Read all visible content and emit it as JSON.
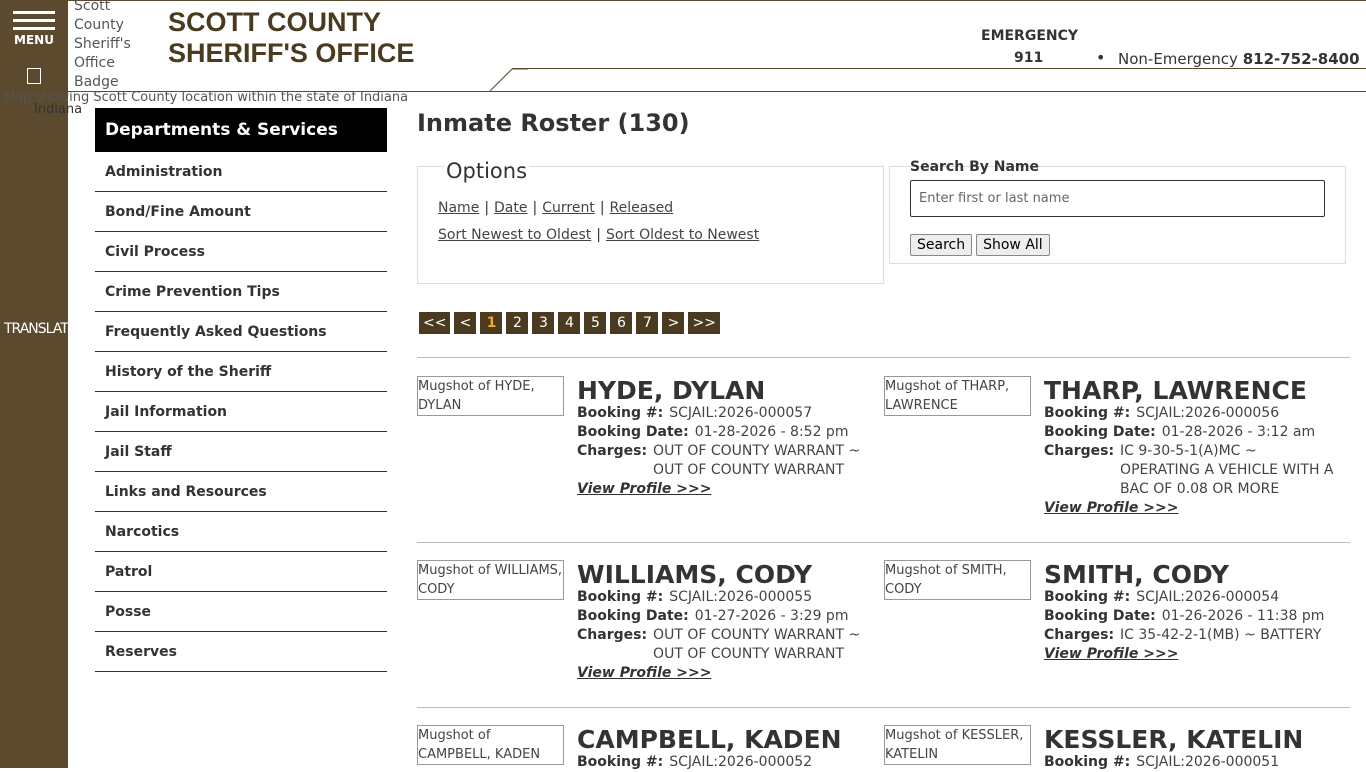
{
  "header": {
    "menu": "MENU",
    "badge_alt": "Scott County Sheriff's Office Badge",
    "title_line1": "SCOTT COUNTY",
    "title_line2": "SHERIFF'S OFFICE",
    "emergency_label": "EMERGENCY",
    "emergency_number": "911",
    "nonemergency_label": "Non-Emergency",
    "nonemergency_number": "812-752-8400"
  },
  "map": {
    "alt": "Map showing Scott County location within the state of Indiana",
    "state_alt": "Indiana"
  },
  "sidebar": {
    "translate": "TRANSLATE"
  },
  "nav": {
    "heading": "Departments & Services",
    "items": [
      "Administration",
      "Bond/Fine Amount",
      "Civil Process",
      "Crime Prevention Tips",
      "Frequently Asked Questions",
      "History of the Sheriff",
      "Jail Information",
      "Jail Staff",
      "Links and Resources",
      "Narcotics",
      "Patrol",
      "Posse",
      "Reserves"
    ]
  },
  "main": {
    "title": "Inmate Roster (130)",
    "options": {
      "title": "Options",
      "sort_links": [
        "Name",
        "Date",
        "Current",
        "Released"
      ],
      "order_links": [
        "Sort Newest to Oldest",
        "Sort Oldest to Newest"
      ]
    },
    "search": {
      "label": "Search By Name",
      "placeholder": "Enter first or last name",
      "buttons": [
        "Search",
        "Show All"
      ]
    },
    "pagination": {
      "pages": [
        "<<",
        "<",
        "1",
        "2",
        "3",
        "4",
        "5",
        "6",
        "7",
        ">",
        ">>"
      ],
      "current": "1"
    },
    "labels": {
      "booking_number": "Booking #:",
      "booking_date": "Booking Date:",
      "charges": "Charges:",
      "view_profile": "View Profile >>>"
    },
    "inmates": [
      {
        "mugshot_alt": "Mugshot of HYDE, DYLAN",
        "name": "HYDE, DYLAN",
        "booking_number": "SCJAIL:2026-000057",
        "booking_date": "01-28-2026 - 8:52 pm",
        "charges": "OUT OF COUNTY WARRANT ~ OUT OF COUNTY WARRANT"
      },
      {
        "mugshot_alt": "Mugshot of THARP, LAWRENCE",
        "name": "THARP, LAWRENCE",
        "booking_number": "SCJAIL:2026-000056",
        "booking_date": "01-28-2026 - 3:12 am",
        "charges": "IC 9-30-5-1(A)MC ~ OPERATING A VEHICLE WITH A BAC OF 0.08 OR MORE"
      },
      {
        "mugshot_alt": "Mugshot of WILLIAMS, CODY",
        "name": "WILLIAMS, CODY",
        "booking_number": "SCJAIL:2026-000055",
        "booking_date": "01-27-2026 - 3:29 pm",
        "charges": "OUT OF COUNTY WARRANT ~ OUT OF COUNTY WARRANT"
      },
      {
        "mugshot_alt": "Mugshot of SMITH, CODY",
        "name": "SMITH, CODY",
        "booking_number": "SCJAIL:2026-000054",
        "booking_date": "01-26-2026 - 11:38 pm",
        "charges": "IC 35-42-2-1(MB) ~ BATTERY"
      },
      {
        "mugshot_alt": "Mugshot of CAMPBELL, KADEN",
        "name": "CAMPBELL, KADEN",
        "booking_number": "SCJAIL:2026-000052",
        "booking_date": "",
        "charges": ""
      },
      {
        "mugshot_alt": "Mugshot of KESSLER, KATELIN",
        "name": "KESSLER, KATELIN",
        "booking_number": "SCJAIL:2026-000051",
        "booking_date": "",
        "charges": ""
      }
    ]
  }
}
